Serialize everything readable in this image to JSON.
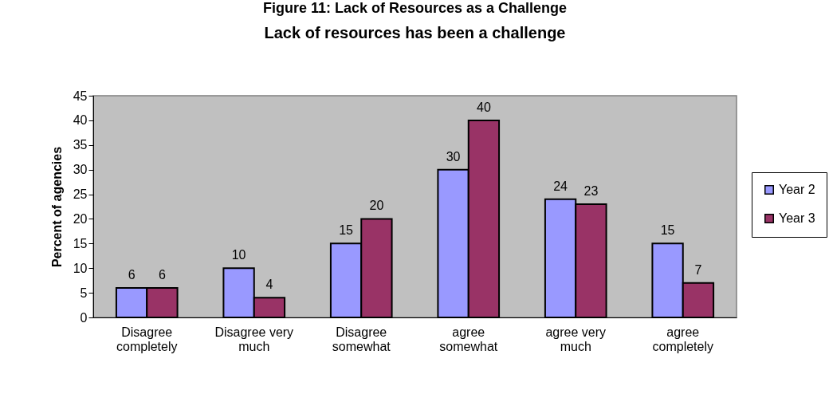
{
  "chart_data": {
    "type": "bar",
    "title": "Lack of resources has been a challenge",
    "ylabel": "Percent of agencies",
    "annotations": [
      "Figure 11: Lack of Resources as a Challenge"
    ],
    "categories": [
      "Disagree completely",
      "Disagree very much",
      "Disagree somewhat",
      "agree somewhat",
      "agree very much",
      "agree completely"
    ],
    "series": [
      {
        "name": "Year 2",
        "color": "#9999ff",
        "values": [
          6,
          10,
          15,
          30,
          24,
          15
        ]
      },
      {
        "name": "Year 3",
        "color": "#993366",
        "values": [
          6,
          4,
          20,
          40,
          23,
          7
        ]
      }
    ],
    "ylim": [
      0,
      45
    ],
    "yticks": [
      0,
      5,
      10,
      15,
      20,
      25,
      30,
      35,
      40,
      45
    ],
    "data_labels": true,
    "grid": false,
    "legend": "right"
  }
}
